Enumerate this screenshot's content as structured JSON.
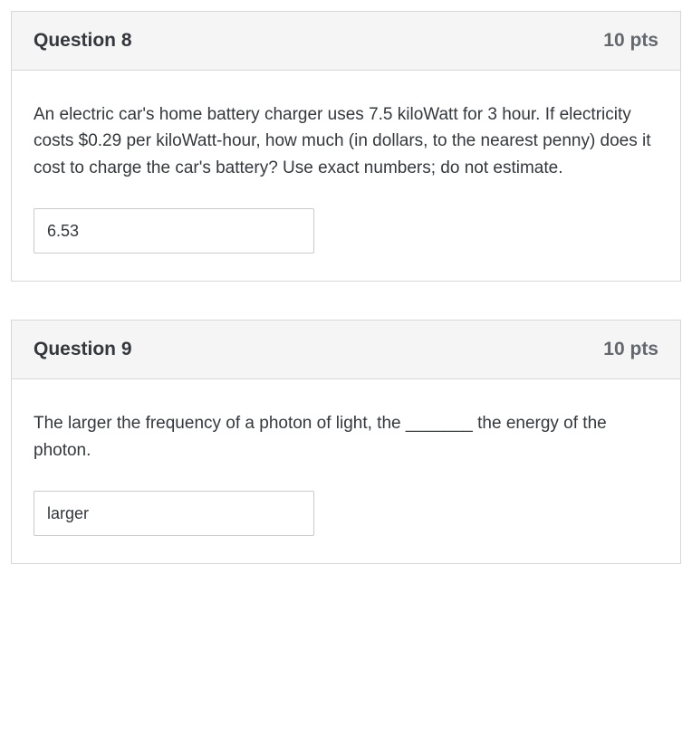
{
  "questions": [
    {
      "title": "Question 8",
      "points": "10 pts",
      "prompt": "An electric car's home battery charger uses 7.5 kiloWatt for 3 hour. If electricity costs $0.29 per kiloWatt-hour, how much (in dollars, to the nearest penny) does it cost to charge the car's battery? Use exact numbers; do not estimate.",
      "answer": "6.53"
    },
    {
      "title": "Question 9",
      "points": "10 pts",
      "prompt": "The larger the frequency of a photon of light, the _______ the energy of the photon.",
      "answer": "larger"
    }
  ],
  "style": {
    "body_bg": "#ffffff",
    "card_border": "#d7d7d7",
    "header_bg": "#f5f5f5",
    "title_color": "#34383c",
    "points_color": "#63686e",
    "prompt_color": "#34383c",
    "input_border": "#cacaca",
    "input_text": "#34383c",
    "title_fontsize": 21,
    "points_fontsize": 21,
    "prompt_fontsize": 19,
    "input_fontsize": 18,
    "input_width": 310,
    "input_height": 50
  }
}
